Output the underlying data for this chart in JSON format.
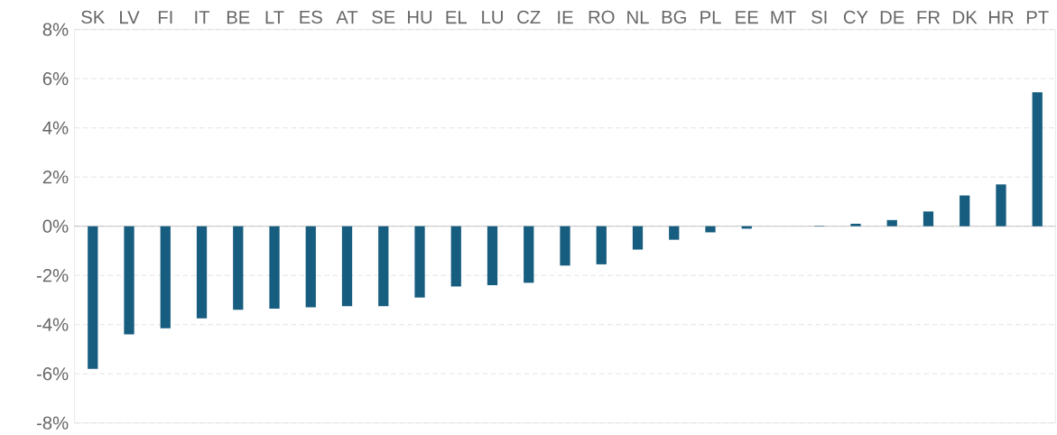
{
  "chart_data": {
    "type": "bar",
    "categories": [
      "SK",
      "LV",
      "FI",
      "IT",
      "BE",
      "LT",
      "ES",
      "AT",
      "SE",
      "HU",
      "EL",
      "LU",
      "CZ",
      "IE",
      "RO",
      "NL",
      "BG",
      "PL",
      "EE",
      "MT",
      "SI",
      "CY",
      "DE",
      "FR",
      "DK",
      "HR",
      "PT"
    ],
    "values": [
      -5.8,
      -4.4,
      -4.15,
      -3.75,
      -3.4,
      -3.35,
      -3.3,
      -3.25,
      -3.25,
      -2.9,
      -2.45,
      -2.4,
      -2.3,
      -1.6,
      -1.55,
      -0.95,
      -0.55,
      -0.25,
      -0.1,
      0,
      0.02,
      0.1,
      0.25,
      0.6,
      1.25,
      1.7,
      5.45
    ],
    "color": "#175d7f",
    "ylim": [
      -8,
      8
    ],
    "yticks": [
      {
        "value": -8,
        "label": "-8%"
      },
      {
        "value": -6,
        "label": "-6%"
      },
      {
        "value": -4,
        "label": "-4%"
      },
      {
        "value": -2,
        "label": "-2%"
      },
      {
        "value": 0,
        "label": "0%"
      },
      {
        "value": 2,
        "label": "2%"
      },
      {
        "value": 4,
        "label": "4%"
      },
      {
        "value": 6,
        "label": "6%"
      },
      {
        "value": 8,
        "label": "8%"
      }
    ],
    "grid": "y"
  }
}
